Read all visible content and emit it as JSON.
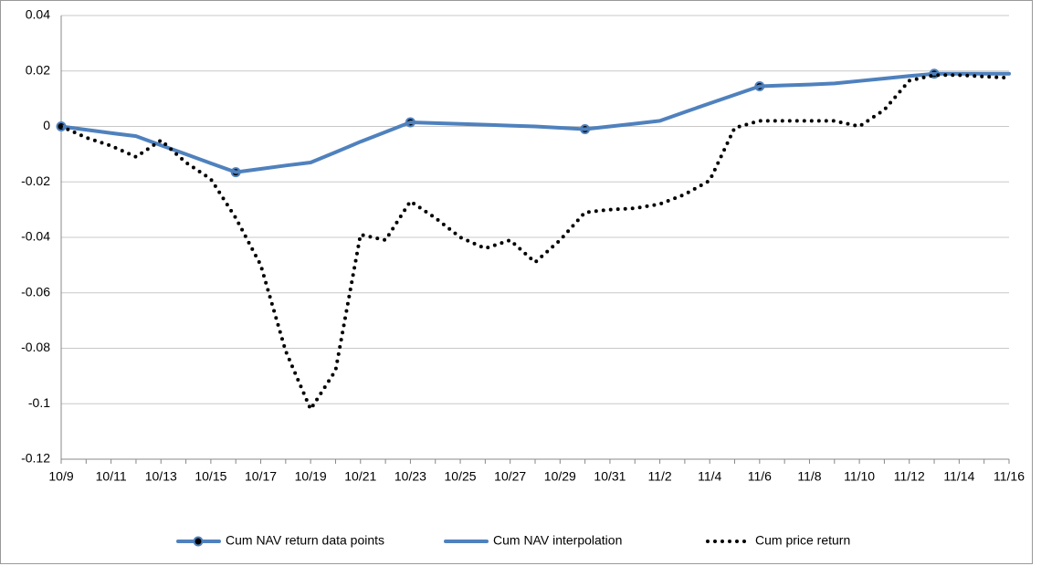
{
  "chart_data": {
    "type": "line",
    "categories": [
      "10/9",
      null,
      "10/11",
      null,
      "10/13",
      null,
      "10/15",
      null,
      "10/17",
      null,
      "10/19",
      null,
      "10/21",
      null,
      "10/23",
      null,
      "10/25",
      null,
      "10/27",
      null,
      "10/29",
      null,
      "10/31",
      null,
      "11/2",
      null,
      "11/4",
      null,
      "11/6",
      null,
      "11/8",
      null,
      "11/10",
      null,
      "11/12",
      null,
      "11/14",
      null,
      "11/16"
    ],
    "series": [
      {
        "name": "Cum NAV return data points",
        "color": "#4f81bd",
        "marker": true,
        "values": [
          0,
          null,
          null,
          null,
          null,
          null,
          null,
          -0.0165,
          null,
          null,
          null,
          null,
          null,
          null,
          0.0015,
          null,
          null,
          null,
          null,
          null,
          null,
          -0.001,
          null,
          null,
          null,
          null,
          null,
          null,
          0.0145,
          null,
          null,
          null,
          null,
          null,
          null,
          0.019,
          null,
          null,
          null
        ]
      },
      {
        "name": "Cum NAV interpolation",
        "color": "#4f81bd",
        "values": [
          0,
          -0.0012,
          -0.0024,
          -0.0035,
          -0.0068,
          -0.01,
          -0.0133,
          -0.0165,
          -0.0153,
          -0.0141,
          -0.013,
          -0.0093,
          -0.0055,
          -0.002,
          0.0015,
          0.0012,
          0.0009,
          0.0006,
          0.0003,
          0,
          -0.0005,
          -0.001,
          0,
          0.001,
          0.002,
          0.0052,
          0.0083,
          0.0114,
          0.0145,
          0.0148,
          0.0151,
          0.0155,
          0.0164,
          0.0173,
          0.0182,
          0.019,
          0.019,
          0.019,
          0.019
        ]
      },
      {
        "name": "Cum price return",
        "color": "#000000",
        "dotted": true,
        "values": [
          0,
          -0.004,
          -0.007,
          -0.011,
          -0.005,
          -0.013,
          -0.019,
          -0.033,
          -0.05,
          -0.081,
          -0.102,
          -0.088,
          -0.039,
          -0.041,
          -0.027,
          -0.033,
          -0.04,
          -0.044,
          -0.041,
          -0.049,
          -0.041,
          -0.031,
          -0.03,
          -0.0295,
          -0.028,
          -0.0245,
          -0.0195,
          -0.0005,
          0.002,
          0.002,
          0.002,
          0.002,
          0,
          0.006,
          0.0165,
          0.0185,
          0.0185,
          0.018,
          0.0175
        ]
      }
    ],
    "ylim": [
      -0.12,
      0.04
    ],
    "yticks": [
      -0.12,
      -0.1,
      -0.08,
      -0.06,
      -0.04,
      -0.02,
      0,
      0.02,
      0.04
    ],
    "grid": true,
    "legend": "bottom"
  }
}
